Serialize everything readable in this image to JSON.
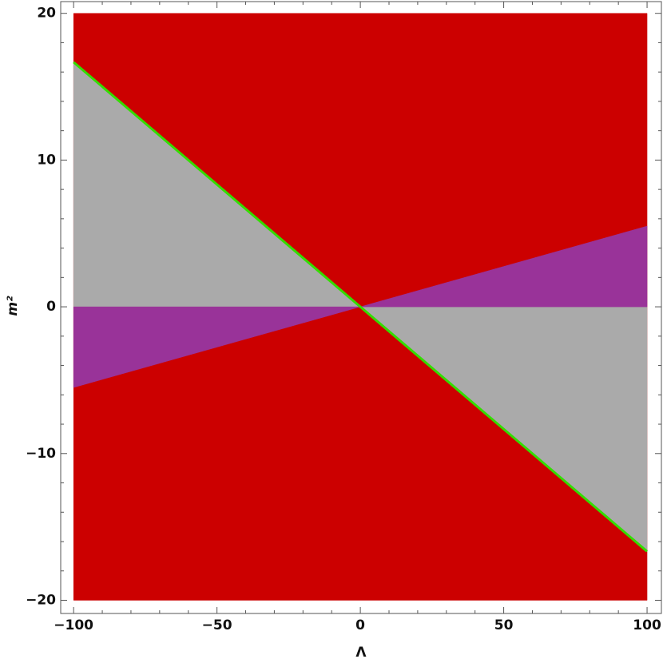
{
  "chart_data": {
    "type": "region",
    "xlabel": "Λ",
    "ylabel": "m²",
    "xlim": [
      -104.5,
      105
    ],
    "ylim": [
      -20.9,
      20.8
    ],
    "xticks": [
      {
        "value": -100,
        "label": "−100"
      },
      {
        "value": -50,
        "label": "−50"
      },
      0,
      50,
      100
    ],
    "yticks": [
      {
        "value": -20,
        "label": "−20"
      },
      {
        "value": -10,
        "label": "−10"
      },
      0,
      10,
      20
    ],
    "xminorticks": [
      -90,
      -80,
      -70,
      -60,
      -40,
      -30,
      -20,
      -10,
      10,
      20,
      30,
      40,
      60,
      70,
      80,
      90
    ],
    "yminorticks": [
      -18,
      -16,
      -14,
      -12,
      -8,
      -6,
      -4,
      -2,
      2,
      4,
      6,
      8,
      12,
      14,
      16,
      18
    ],
    "series": [
      {
        "color": "#cc0000",
        "x": [
          -100,
          100,
          100,
          -100
        ],
        "y": [
          -20,
          -20,
          20,
          20
        ]
      },
      {
        "color": "#aaaaaa",
        "x": [
          -100,
          0,
          -100
        ],
        "y": [
          16.67,
          0,
          0
        ]
      },
      {
        "color": "#aaaaaa",
        "x": [
          100,
          0,
          100
        ],
        "y": [
          -16.67,
          0,
          0
        ]
      },
      {
        "color": "#993399",
        "x": [
          -100,
          0,
          -100
        ],
        "y": [
          -5.5,
          0,
          0
        ]
      },
      {
        "color": "#993399",
        "x": [
          100,
          0,
          100
        ],
        "y": [
          5.5,
          0,
          0
        ]
      }
    ],
    "line": {
      "color": "#33dd00",
      "x": [
        -100,
        100
      ],
      "y": [
        16.67,
        -16.67
      ]
    }
  }
}
